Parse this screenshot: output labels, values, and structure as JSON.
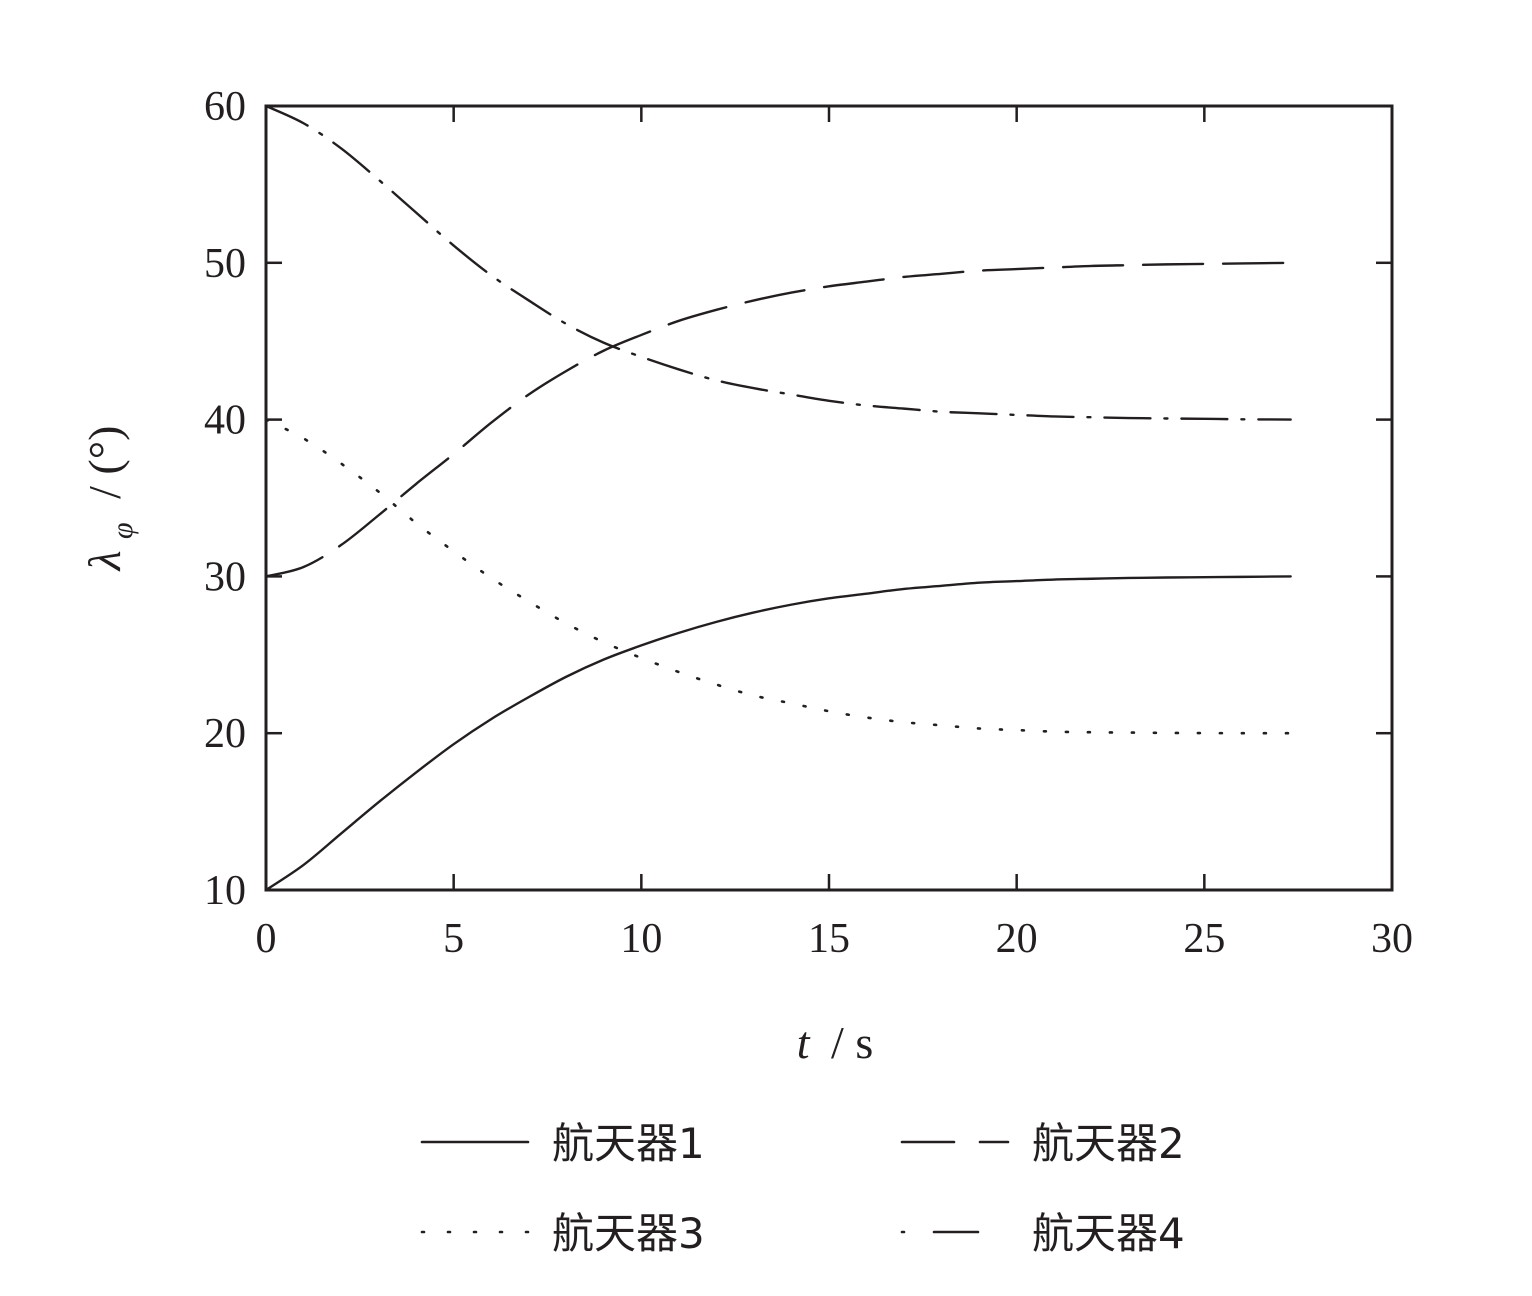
{
  "chart_data": {
    "type": "line",
    "x": [
      0,
      1,
      2,
      3,
      4,
      5,
      6,
      7,
      8,
      9,
      10,
      11,
      12,
      13,
      14,
      15,
      16,
      17,
      18,
      19,
      20,
      21,
      22,
      23,
      24,
      25,
      26,
      27.3
    ],
    "xlim": [
      0,
      30
    ],
    "ylim": [
      10,
      60
    ],
    "xticks": [
      "0",
      "5",
      "10",
      "15",
      "20",
      "25",
      "30"
    ],
    "yticks": [
      "10",
      "20",
      "30",
      "40",
      "50",
      "60"
    ],
    "xlabel_var": "t",
    "xlabel_unit": "/ s",
    "ylabel_var": "λ",
    "ylabel_sub": "φ",
    "ylabel_unit": "/ (°)",
    "grid": false,
    "legend_position": "bottom",
    "series": [
      {
        "name": "航天器1",
        "dash": "solid",
        "values": [
          10.0,
          11.6,
          13.6,
          15.6,
          17.5,
          19.3,
          20.9,
          22.3,
          23.6,
          24.7,
          25.6,
          26.4,
          27.1,
          27.7,
          28.2,
          28.6,
          28.9,
          29.2,
          29.4,
          29.6,
          29.7,
          29.8,
          29.85,
          29.9,
          29.93,
          29.95,
          29.97,
          30.0
        ]
      },
      {
        "name": "航天器2",
        "dash": "dash",
        "values": [
          30.0,
          30.6,
          32.0,
          33.9,
          35.9,
          37.8,
          39.8,
          41.6,
          43.1,
          44.4,
          45.4,
          46.3,
          47.0,
          47.6,
          48.1,
          48.5,
          48.8,
          49.1,
          49.3,
          49.5,
          49.6,
          49.7,
          49.8,
          49.85,
          49.9,
          49.93,
          49.96,
          50.0
        ]
      },
      {
        "name": "航天器3",
        "dash": "dot",
        "values": [
          40.0,
          38.8,
          37.2,
          35.4,
          33.4,
          31.6,
          29.9,
          28.4,
          27.0,
          25.8,
          24.8,
          23.9,
          23.1,
          22.4,
          21.9,
          21.4,
          21.0,
          20.7,
          20.5,
          20.3,
          20.2,
          20.1,
          20.06,
          20.04,
          20.02,
          20.01,
          20.0,
          20.0
        ]
      },
      {
        "name": "航天器4",
        "dash": "dashdot",
        "values": [
          60.0,
          58.9,
          57.3,
          55.3,
          53.2,
          51.1,
          49.2,
          47.6,
          46.1,
          44.9,
          44.0,
          43.2,
          42.5,
          42.0,
          41.6,
          41.2,
          40.9,
          40.7,
          40.5,
          40.4,
          40.3,
          40.2,
          40.15,
          40.1,
          40.07,
          40.05,
          40.02,
          40.0
        ]
      }
    ]
  }
}
